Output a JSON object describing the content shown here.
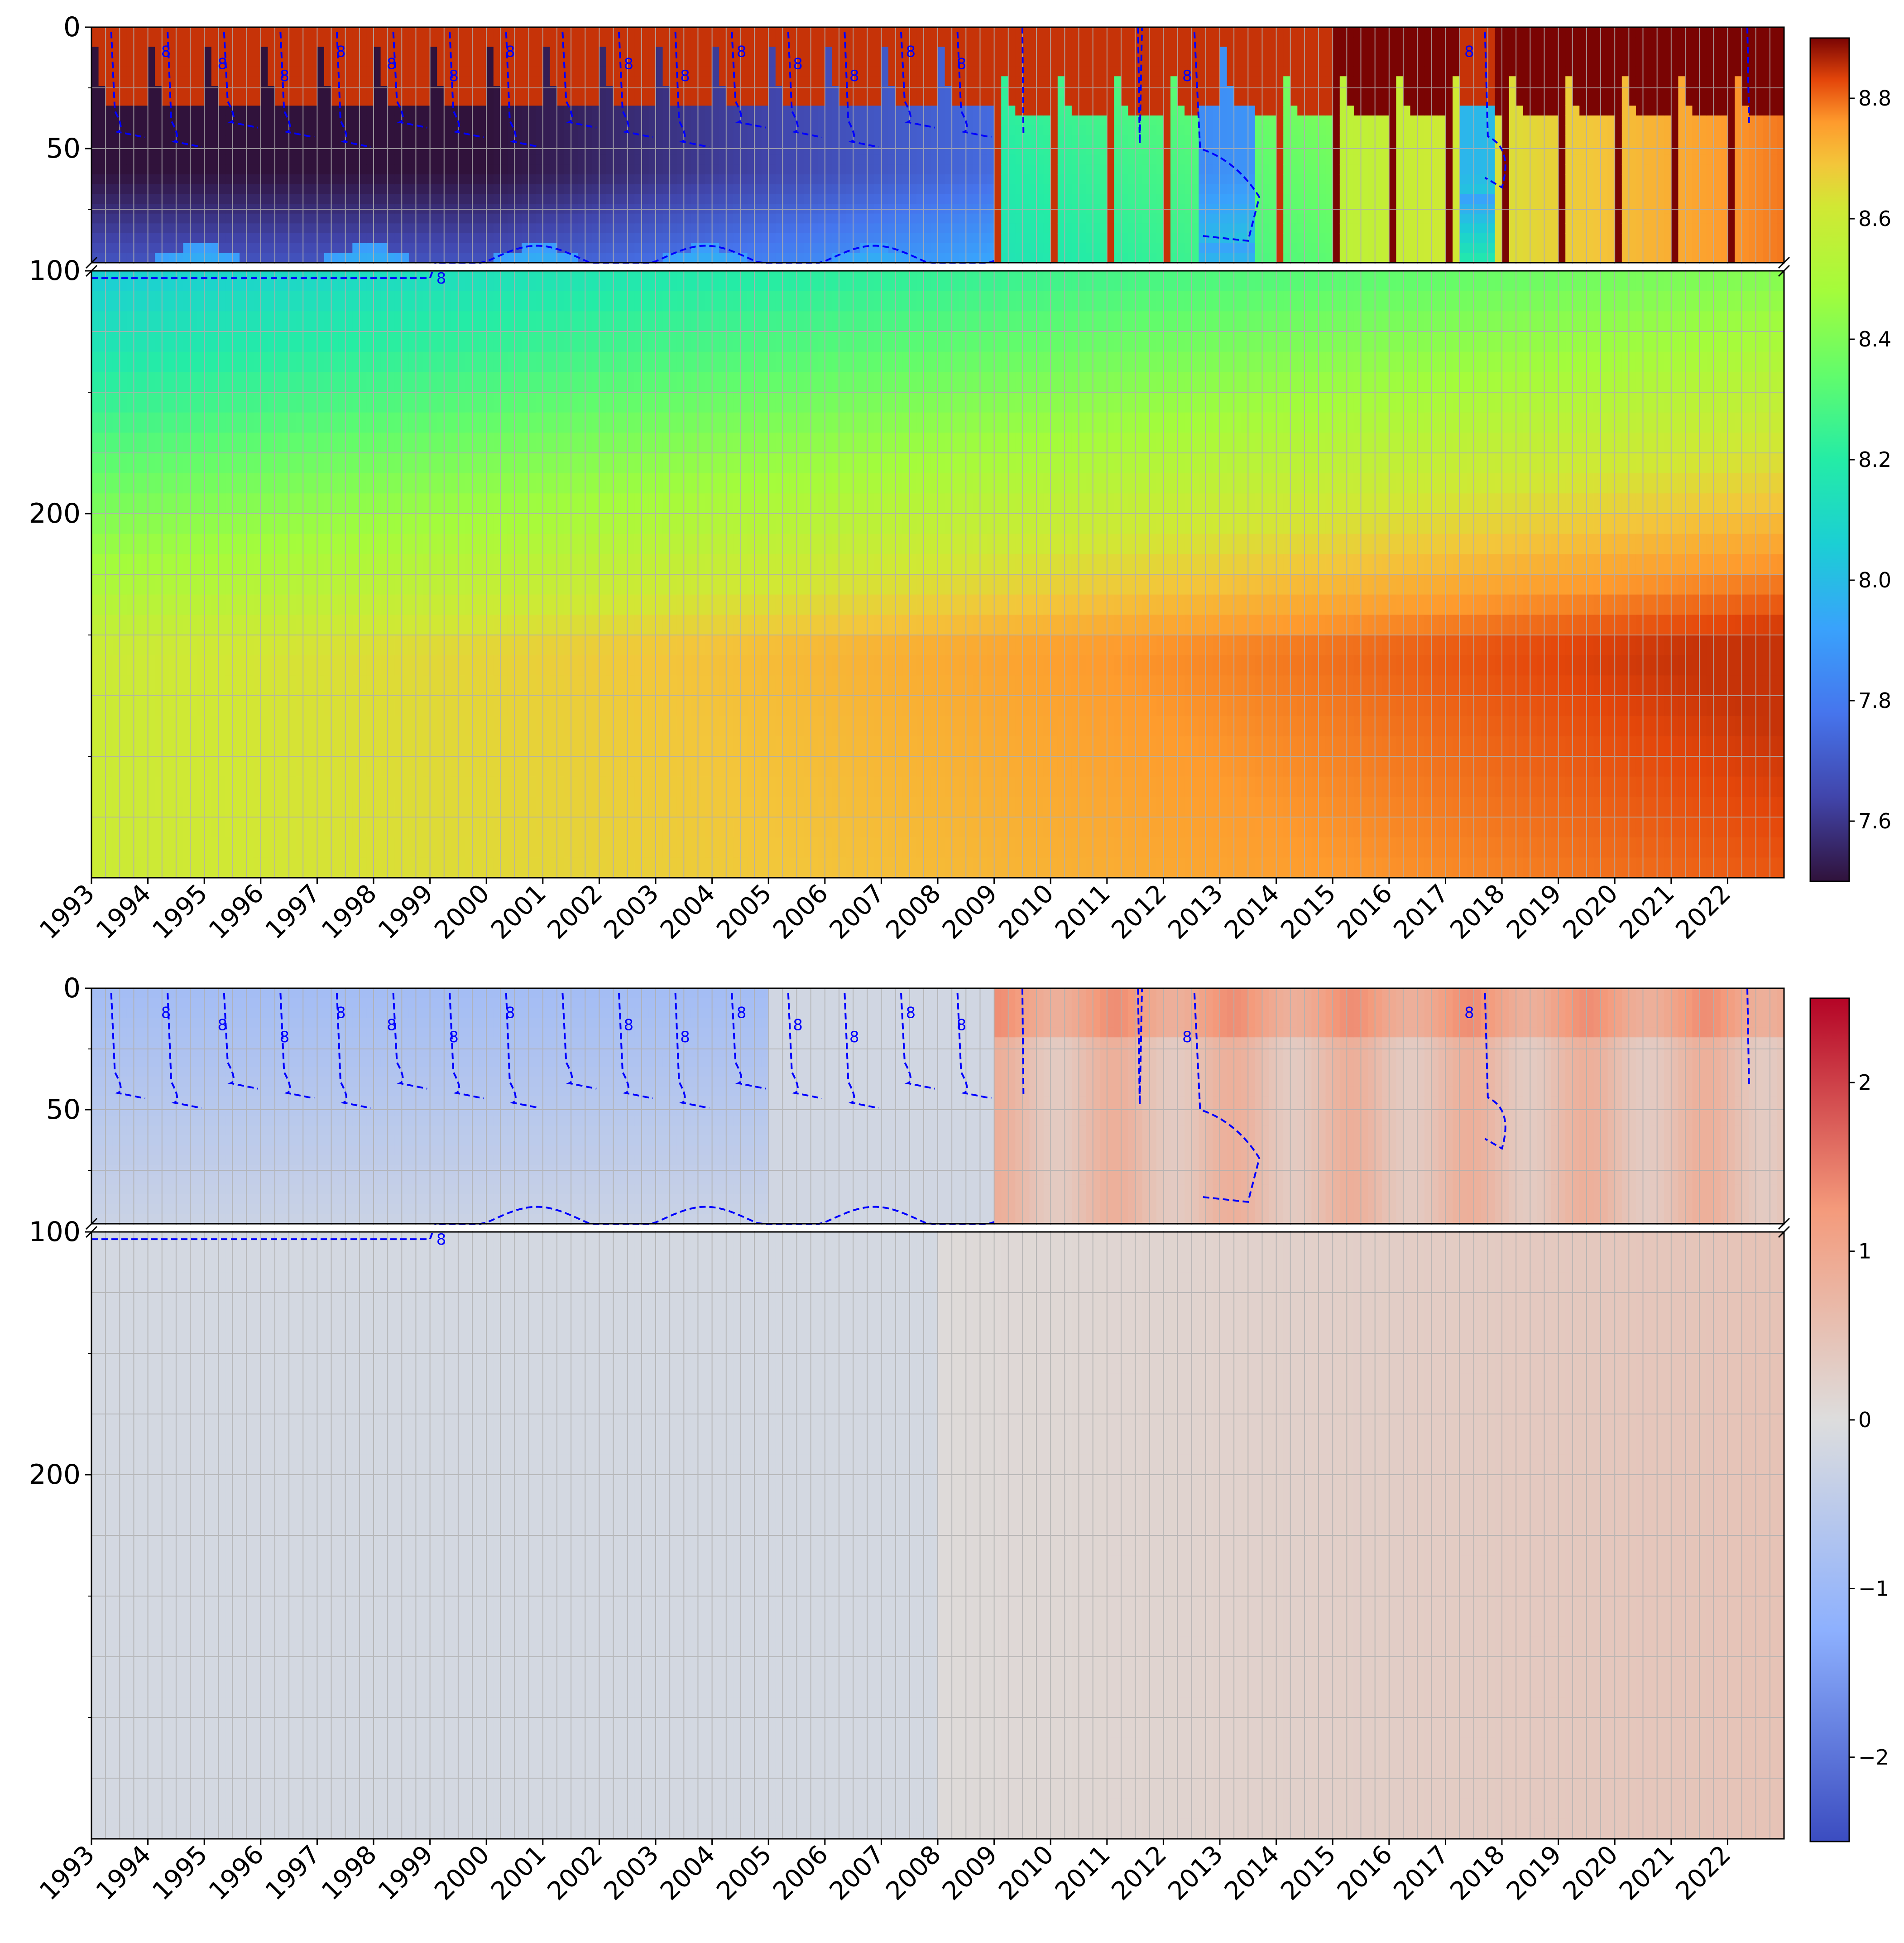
{
  "chart_data": [
    {
      "type": "heatmap",
      "title": "",
      "xlabel": "",
      "ylabel": "",
      "x_tick_labels": [
        "1993",
        "1994",
        "1995",
        "1996",
        "1997",
        "1998",
        "1999",
        "2000",
        "2001",
        "2002",
        "2003",
        "2004",
        "2005",
        "2006",
        "2007",
        "2008",
        "2009",
        "2010",
        "2011",
        "2012",
        "2013",
        "2014",
        "2015",
        "2016",
        "2017",
        "2018",
        "2019",
        "2020",
        "2021",
        "2022"
      ],
      "xlim": [
        1993,
        2023
      ],
      "y_axis": "depth, increasing downward",
      "ylim": [
        0,
        350
      ],
      "y_axis_break": [
        97,
        100
      ],
      "y_tick_labels": [
        "0",
        "50",
        "100",
        "200"
      ],
      "grid": true,
      "colormap": "turbo",
      "colorbar": {
        "ticks": [
          7.6,
          7.8,
          8.0,
          8.2,
          8.4,
          8.6,
          8.8
        ],
        "range": [
          7.5,
          8.9
        ]
      },
      "contour": {
        "style": "blue dashed",
        "label": "8"
      },
      "field_summary": "Upper layer (0-100) shows annual cold intrusions (~7.5) from 1993-2009 and in 2013, weakening after 2009; below 100 values increase with depth from ~8.1 to ~8.7 and warm over time to ~8.8 by 2022."
    },
    {
      "type": "heatmap",
      "title": "",
      "xlabel": "",
      "ylabel": "",
      "x_tick_labels": [
        "1993",
        "1994",
        "1995",
        "1996",
        "1997",
        "1998",
        "1999",
        "2000",
        "2001",
        "2002",
        "2003",
        "2004",
        "2005",
        "2006",
        "2007",
        "2008",
        "2009",
        "2010",
        "2011",
        "2012",
        "2013",
        "2014",
        "2015",
        "2016",
        "2017",
        "2018",
        "2019",
        "2020",
        "2021",
        "2022"
      ],
      "xlim": [
        1993,
        2023
      ],
      "y_axis": "depth, increasing downward",
      "ylim": [
        0,
        350
      ],
      "y_axis_break": [
        97,
        100
      ],
      "y_tick_labels": [
        "0",
        "50",
        "100",
        "200"
      ],
      "grid": true,
      "colormap": "coolwarm",
      "colorbar": {
        "ticks": [
          -2,
          -1,
          0,
          1,
          2
        ],
        "tick_labels": [
          "−2",
          "−1",
          "0",
          "1",
          "2"
        ],
        "range": [
          -2.5,
          2.5
        ]
      },
      "contour": {
        "style": "blue dashed",
        "label": "8"
      },
      "field_summary": "Anomaly field: negative (blue, ~-1) in the upper 100 before ~2005, positive (red, ~+0.8 to +2) after 2009; near zero below 100, slightly positive after 2015."
    }
  ],
  "panels": [
    {
      "colorbar_tick_labels": [
        "8.8",
        "8.6",
        "8.4",
        "8.2",
        "8.0",
        "7.8",
        "7.6"
      ],
      "colorbar_tick_values": [
        8.8,
        8.6,
        8.4,
        8.2,
        8.0,
        7.8,
        7.6
      ],
      "colors": {
        "contour": "#0000ff"
      }
    },
    {
      "colorbar_tick_labels": [
        "2",
        "1",
        "0",
        "−1",
        "−2"
      ],
      "colorbar_tick_values": [
        2,
        1,
        0,
        -1,
        -2
      ],
      "colors": {
        "contour": "#0000ff"
      }
    }
  ]
}
